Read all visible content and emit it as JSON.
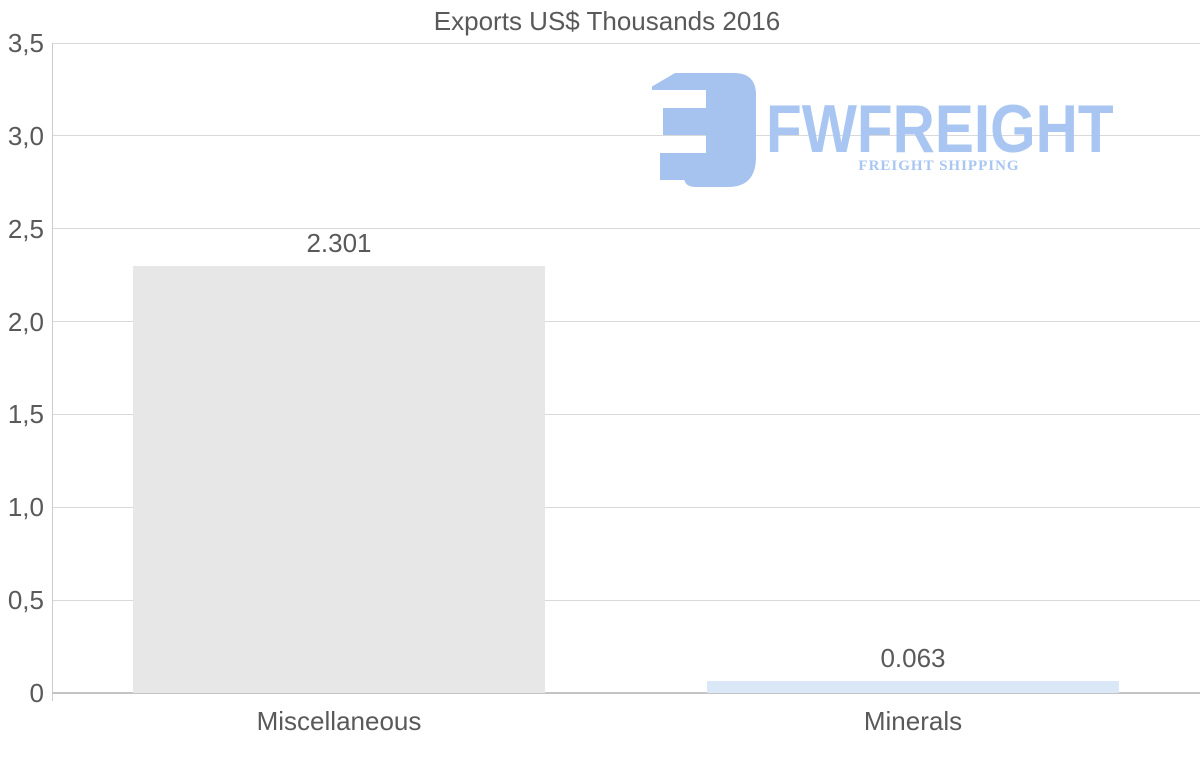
{
  "title": "Exports US$ Thousands 2016",
  "chart_data": {
    "type": "bar",
    "title": "Exports US$ Thousands 2016",
    "categories": [
      "Miscellaneous",
      "Minerals"
    ],
    "values": [
      2.301,
      0.063
    ],
    "value_labels": [
      "2.301",
      "0.063"
    ],
    "bar_colors": [
      "#e7e7e7",
      "#d9e7f7"
    ],
    "xlabel": "",
    "ylabel": "",
    "ylim": [
      0,
      3.5
    ],
    "yticks": [
      {
        "v": 3.5,
        "label": "3,5"
      },
      {
        "v": 3.0,
        "label": "3,0"
      },
      {
        "v": 2.5,
        "label": "2,5"
      },
      {
        "v": 2.0,
        "label": "2,0"
      },
      {
        "v": 1.5,
        "label": "1,5"
      },
      {
        "v": 1.0,
        "label": "1,0"
      },
      {
        "v": 0.5,
        "label": "0,5"
      },
      {
        "v": 0,
        "label": "0"
      }
    ],
    "grid": "horizontal",
    "legend": false
  },
  "watermark": {
    "brand": "FWFREIGHT",
    "tagline": "FREIGHT SHIPPING",
    "color": "#a6c3ef",
    "text_color": "#a9c6f2"
  },
  "colors": {
    "text": "#595959",
    "gridline": "#d9d9d9",
    "axis": "#c4c4c4",
    "background": "#ffffff"
  }
}
